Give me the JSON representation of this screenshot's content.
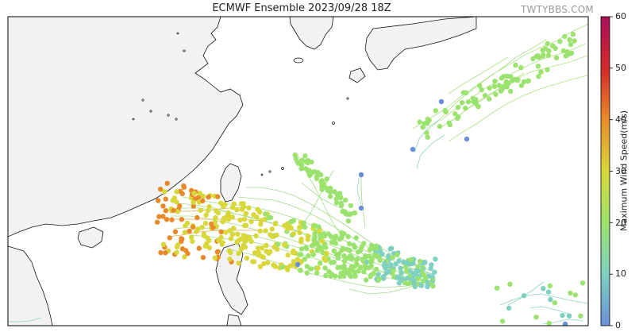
{
  "title": "ECMWF Ensemble 2023/09/28 18Z",
  "watermark": "TWTYBBS.COM",
  "colorbar": {
    "label": "Maximum Wind Speed(m/s)",
    "ticks": [
      "60",
      "50",
      "40",
      "30",
      "20",
      "10",
      "0"
    ],
    "min": 0,
    "max": 60,
    "colors": [
      "#6a8fd8",
      "#7fd0c0",
      "#9be36e",
      "#d8d83a",
      "#e88a2a",
      "#d42a2a",
      "#a8105a"
    ]
  },
  "colors": {
    "land": "#f2f2f2",
    "coast": "#111111",
    "ocean": "#ffffff"
  }
}
